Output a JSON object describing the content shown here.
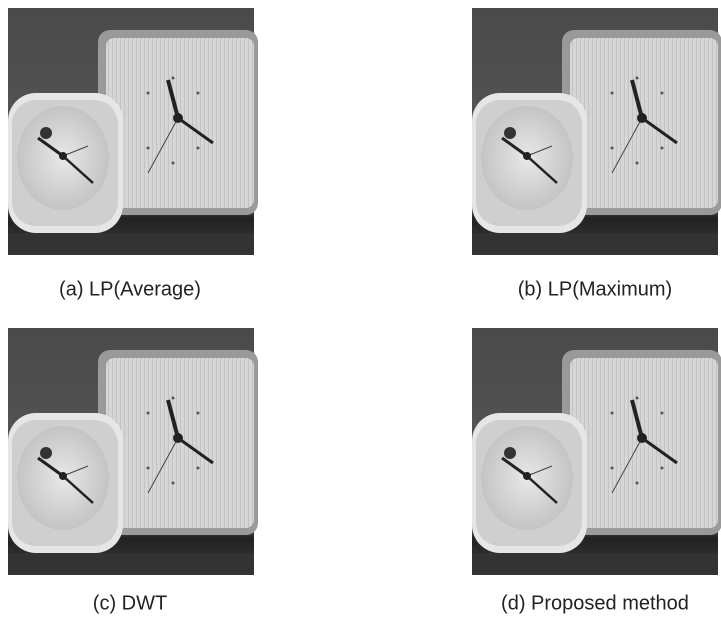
{
  "figure": {
    "panels": [
      {
        "caption": "(a) LP(Average)"
      },
      {
        "caption": "(b) LP(Maximum)"
      },
      {
        "caption": "(c) DWT"
      },
      {
        "caption": "(d) Proposed method"
      }
    ]
  }
}
